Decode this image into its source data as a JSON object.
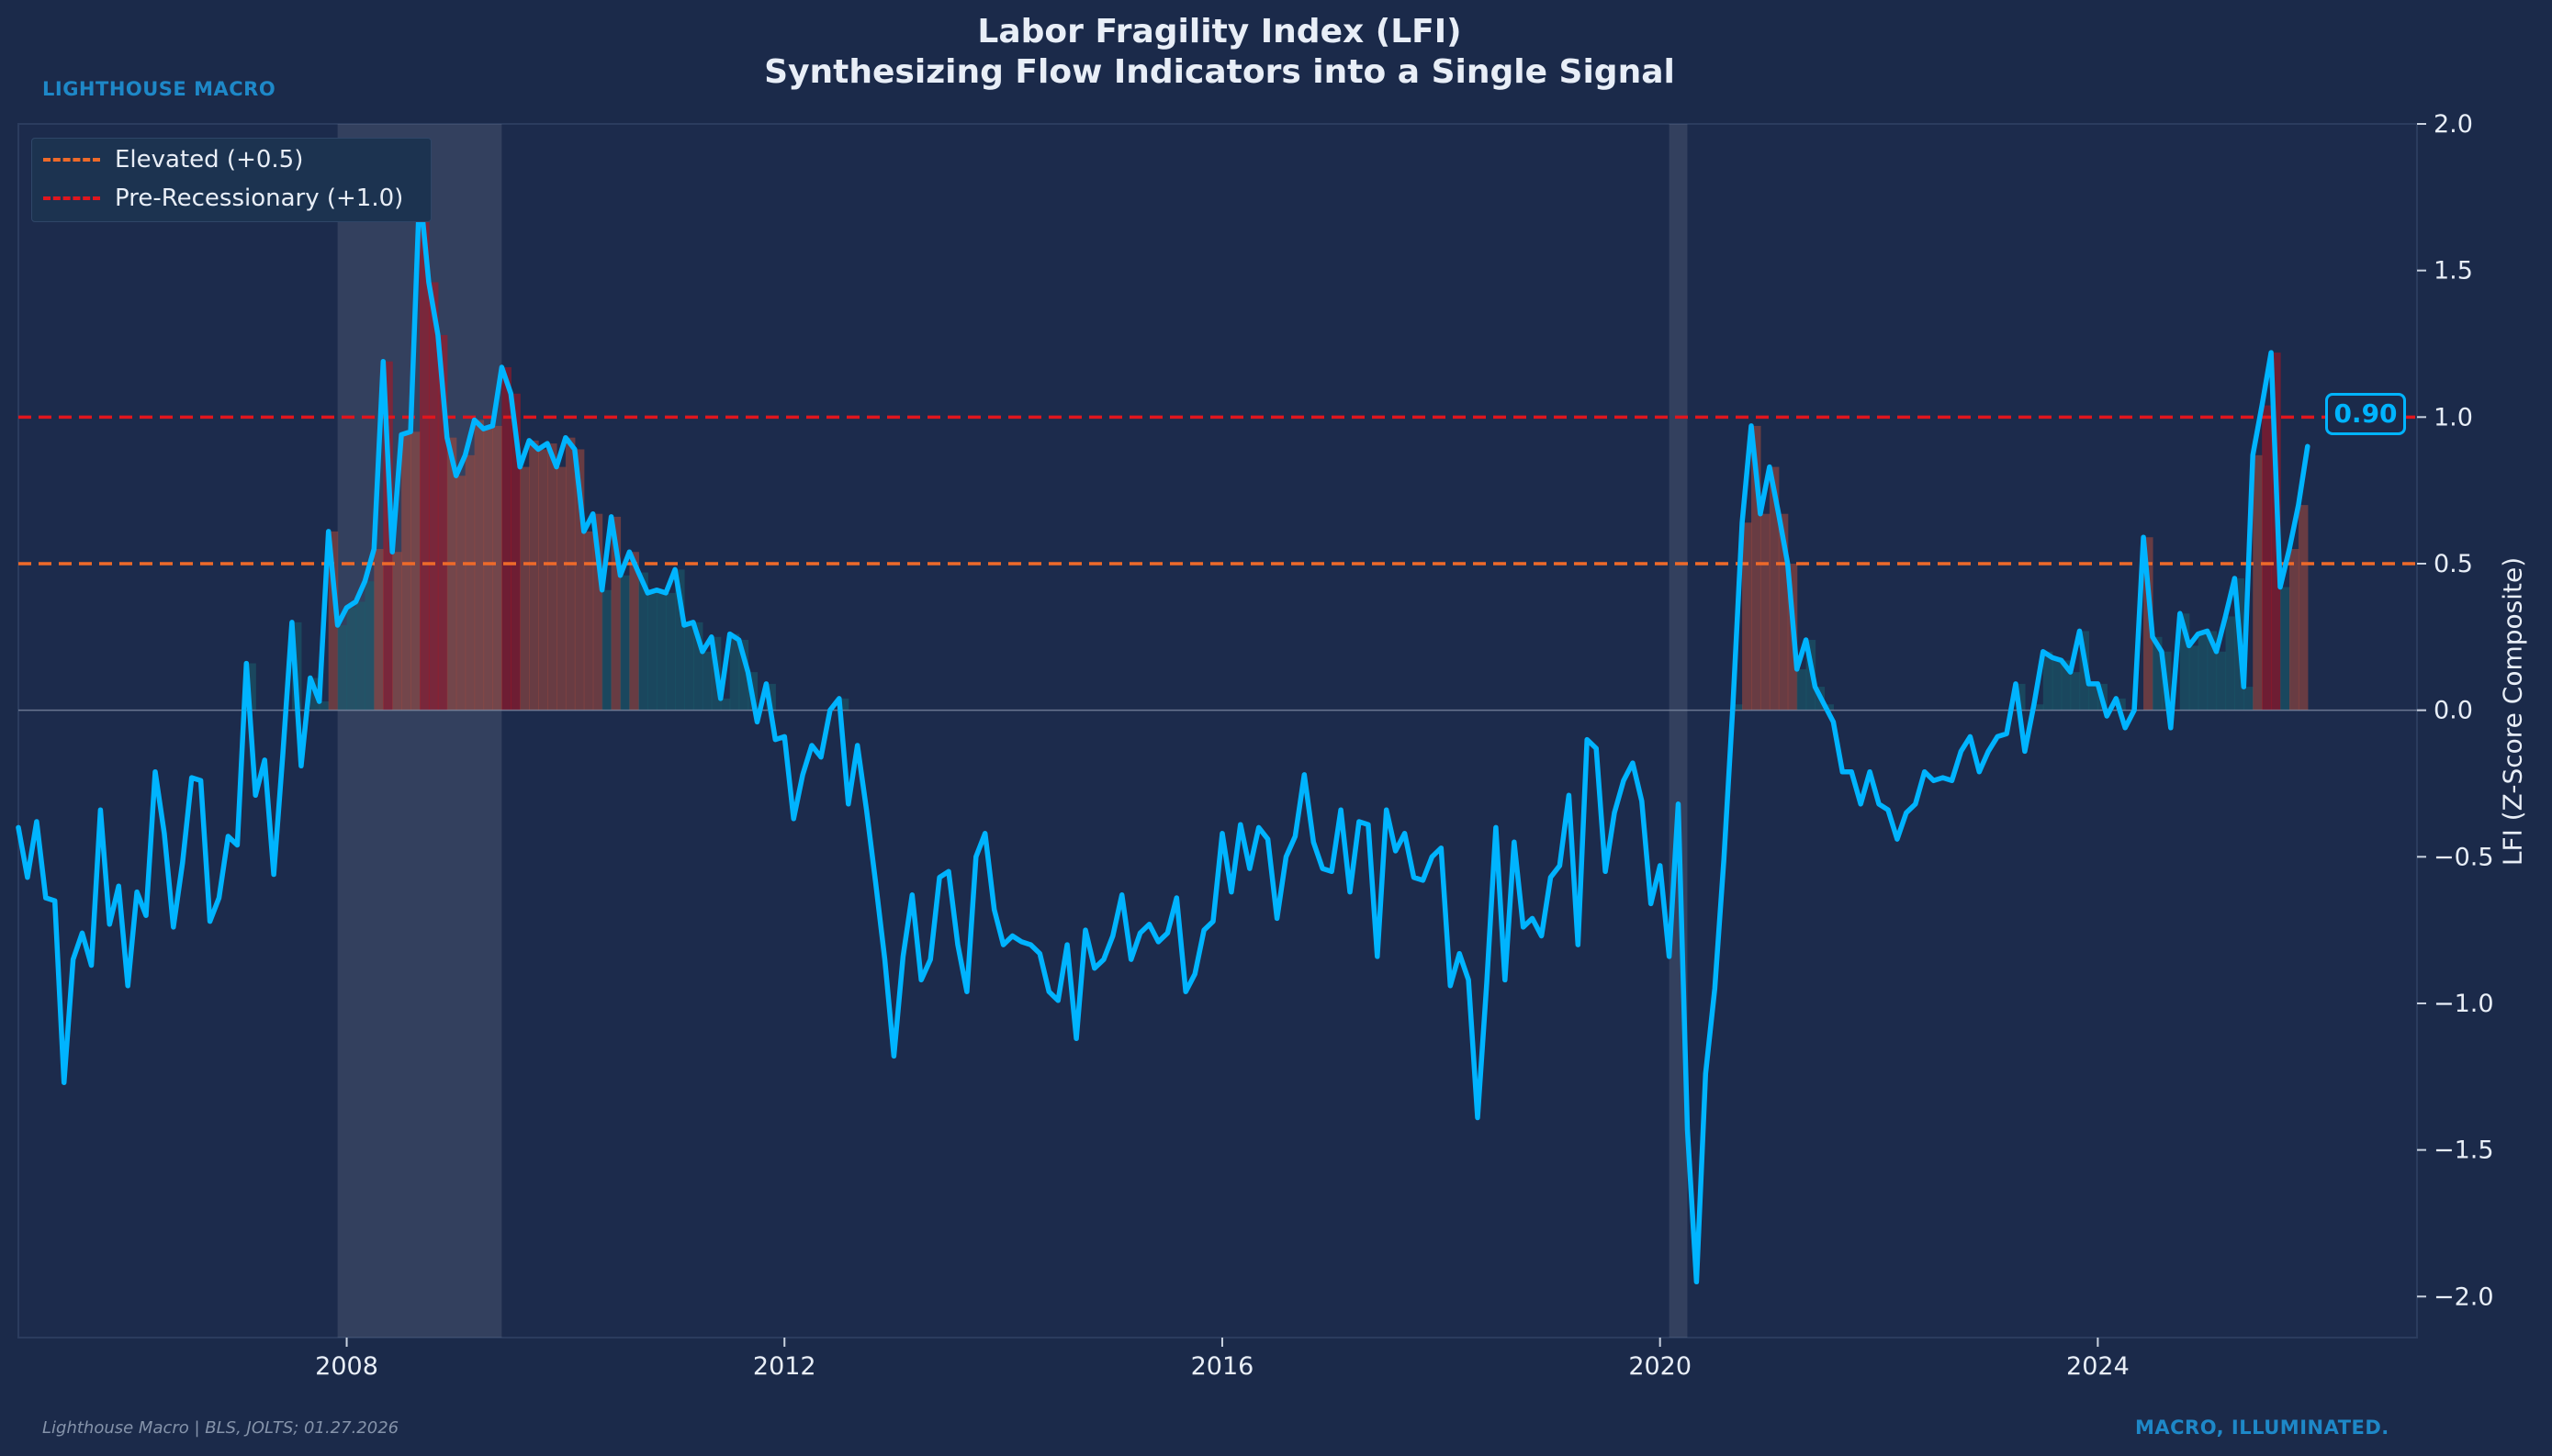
{
  "brand": "LIGHTHOUSE MACRO",
  "tagline": "MACRO, ILLUMINATED.",
  "source": "Lighthouse Macro | BLS, JOLTS; 01.27.2026",
  "chart_data": {
    "type": "line",
    "title": "Labor Fragility Index (LFI)",
    "subtitle": "Synthesizing Flow Indicators into a Single Signal",
    "ylabel": "LFI (Z-Score Composite)",
    "xlabel": "",
    "xlim": [
      "2005-01",
      "2026-12"
    ],
    "ylim": [
      -2.14,
      2.0
    ],
    "yaxis_position": "right",
    "yticks": [
      2.0,
      1.5,
      1.0,
      0.5,
      0.0,
      -0.5,
      -1.0,
      -1.5,
      -2.0
    ],
    "ytick_labels": [
      "2.0",
      "1.5",
      "1.0",
      "0.5",
      "0.0",
      "−0.5",
      "−1.0",
      "−1.5",
      "−2.0"
    ],
    "xticks": [
      "2008",
      "2012",
      "2016",
      "2020",
      "2024"
    ],
    "grid": false,
    "legend_placement": "top-left",
    "thresholds": [
      {
        "name": "Elevated (+0.5)",
        "value": 0.5,
        "color": "#ee6a2a"
      },
      {
        "name": "Pre-Recessionary (+1.0)",
        "value": 1.0,
        "color": "#e0161e"
      }
    ],
    "recessions": [
      {
        "start": "2007-12",
        "end": "2009-06"
      },
      {
        "start": "2020-02",
        "end": "2020-04"
      }
    ],
    "last_value_label": "0.90",
    "series": [
      {
        "color": "#00b4ff",
        "x": [
          "2005-01",
          "2005-02",
          "2005-03",
          "2005-04",
          "2005-05",
          "2005-06",
          "2005-07",
          "2005-08",
          "2005-09",
          "2005-10",
          "2005-11",
          "2005-12",
          "2006-01",
          "2006-02",
          "2006-03",
          "2006-04",
          "2006-05",
          "2006-06",
          "2006-07",
          "2006-08",
          "2006-09",
          "2006-10",
          "2006-11",
          "2006-12",
          "2007-01",
          "2007-02",
          "2007-03",
          "2007-04",
          "2007-05",
          "2007-06",
          "2007-07",
          "2007-08",
          "2007-09",
          "2007-10",
          "2007-11",
          "2007-12",
          "2008-01",
          "2008-02",
          "2008-03",
          "2008-04",
          "2008-05",
          "2008-06",
          "2008-07",
          "2008-08",
          "2008-09",
          "2008-10",
          "2008-11",
          "2008-12",
          "2009-01",
          "2009-02",
          "2009-03",
          "2009-04",
          "2009-05",
          "2009-06",
          "2009-07",
          "2009-08",
          "2009-09",
          "2009-10",
          "2009-11",
          "2009-12",
          "2010-01",
          "2010-02",
          "2010-03",
          "2010-04",
          "2010-05",
          "2010-06",
          "2010-07",
          "2010-08",
          "2010-09",
          "2010-10",
          "2010-11",
          "2010-12",
          "2011-01",
          "2011-02",
          "2011-03",
          "2011-04",
          "2011-05",
          "2011-06",
          "2011-07",
          "2011-08",
          "2011-09",
          "2011-10",
          "2011-11",
          "2011-12",
          "2012-01",
          "2012-02",
          "2012-03",
          "2012-04",
          "2012-05",
          "2012-06",
          "2012-07",
          "2012-08",
          "2012-09",
          "2012-10",
          "2012-11",
          "2012-12",
          "2013-01",
          "2013-02",
          "2013-03",
          "2013-04",
          "2013-05",
          "2013-06",
          "2013-07",
          "2013-08",
          "2013-09",
          "2013-10",
          "2013-11",
          "2013-12",
          "2014-01",
          "2014-02",
          "2014-03",
          "2014-04",
          "2014-05",
          "2014-06",
          "2014-07",
          "2014-08",
          "2014-09",
          "2014-10",
          "2014-11",
          "2014-12",
          "2015-01",
          "2015-02",
          "2015-03",
          "2015-04",
          "2015-05",
          "2015-06",
          "2015-07",
          "2015-08",
          "2015-09",
          "2015-10",
          "2015-11",
          "2015-12",
          "2016-01",
          "2016-02",
          "2016-03",
          "2016-04",
          "2016-05",
          "2016-06",
          "2016-07",
          "2016-08",
          "2016-09",
          "2016-10",
          "2016-11",
          "2016-12",
          "2017-01",
          "2017-02",
          "2017-03",
          "2017-04",
          "2017-05",
          "2017-06",
          "2017-07",
          "2017-08",
          "2017-09",
          "2017-10",
          "2017-11",
          "2017-12",
          "2018-01",
          "2018-02",
          "2018-03",
          "2018-04",
          "2018-05",
          "2018-06",
          "2018-07",
          "2018-08",
          "2018-09",
          "2018-10",
          "2018-11",
          "2018-12",
          "2019-01",
          "2019-02",
          "2019-03",
          "2019-04",
          "2019-05",
          "2019-06",
          "2019-07",
          "2019-08",
          "2019-09",
          "2019-10",
          "2019-11",
          "2019-12",
          "2020-01",
          "2020-02",
          "2020-03",
          "2020-04",
          "2020-05",
          "2020-06",
          "2020-07",
          "2020-08",
          "2020-09",
          "2020-10",
          "2020-11",
          "2020-12",
          "2021-01",
          "2021-02",
          "2021-03",
          "2021-04",
          "2021-05",
          "2021-06",
          "2021-07",
          "2021-08",
          "2021-09",
          "2021-10",
          "2021-11",
          "2021-12",
          "2022-01",
          "2022-02",
          "2022-03",
          "2022-04",
          "2022-05",
          "2022-06",
          "2022-07",
          "2022-08",
          "2022-09",
          "2022-10",
          "2022-11",
          "2022-12",
          "2023-01",
          "2023-02",
          "2023-03",
          "2023-04",
          "2023-05",
          "2023-06",
          "2023-07",
          "2023-08",
          "2023-09",
          "2023-10",
          "2023-11",
          "2023-12",
          "2024-01",
          "2024-02",
          "2024-03",
          "2024-04",
          "2024-05",
          "2024-06",
          "2024-07",
          "2024-08",
          "2024-09",
          "2024-10",
          "2024-11",
          "2024-12",
          "2025-01",
          "2025-02",
          "2025-03",
          "2025-04",
          "2025-05",
          "2025-06",
          "2025-07",
          "2025-08",
          "2025-09",
          "2025-10",
          "2025-11",
          "2025-12"
        ],
        "values": [
          -0.4,
          -0.57,
          -0.38,
          -0.64,
          -0.65,
          -1.27,
          -0.85,
          -0.76,
          -0.87,
          -0.34,
          -0.73,
          -0.6,
          -0.94,
          -0.62,
          -0.7,
          -0.21,
          -0.42,
          -0.74,
          -0.52,
          -0.23,
          -0.24,
          -0.72,
          -0.64,
          -0.43,
          -0.46,
          0.16,
          -0.29,
          -0.17,
          -0.56,
          -0.15,
          0.3,
          -0.19,
          0.11,
          0.03,
          0.61,
          0.29,
          0.35,
          0.37,
          0.44,
          0.55,
          1.19,
          0.54,
          0.94,
          0.95,
          1.78,
          1.46,
          1.28,
          0.93,
          0.8,
          0.87,
          0.99,
          0.96,
          0.97,
          1.17,
          1.08,
          0.83,
          0.92,
          0.89,
          0.91,
          0.83,
          0.93,
          0.89,
          0.61,
          0.67,
          0.41,
          0.66,
          0.46,
          0.54,
          0.47,
          0.4,
          0.41,
          0.4,
          0.48,
          0.29,
          0.3,
          0.2,
          0.25,
          0.04,
          0.26,
          0.24,
          0.13,
          -0.04,
          0.09,
          -0.1,
          -0.09,
          -0.37,
          -0.22,
          -0.12,
          -0.16,
          0.0,
          0.04,
          -0.32,
          -0.12,
          -0.34,
          -0.59,
          -0.85,
          -1.18,
          -0.84,
          -0.63,
          -0.92,
          -0.85,
          -0.57,
          -0.55,
          -0.8,
          -0.96,
          -0.5,
          -0.42,
          -0.68,
          -0.8,
          -0.77,
          -0.79,
          -0.8,
          -0.83,
          -0.96,
          -0.99,
          -0.8,
          -1.12,
          -0.75,
          -0.88,
          -0.85,
          -0.77,
          -0.63,
          -0.85,
          -0.76,
          -0.73,
          -0.79,
          -0.76,
          -0.64,
          -0.96,
          -0.9,
          -0.75,
          -0.72,
          -0.42,
          -0.62,
          -0.39,
          -0.54,
          -0.4,
          -0.44,
          -0.71,
          -0.5,
          -0.43,
          -0.22,
          -0.45,
          -0.54,
          -0.55,
          -0.34,
          -0.62,
          -0.38,
          -0.39,
          -0.84,
          -0.34,
          -0.48,
          -0.42,
          -0.57,
          -0.58,
          -0.5,
          -0.47,
          -0.94,
          -0.83,
          -0.92,
          -1.39,
          -0.93,
          -0.4,
          -0.92,
          -0.45,
          -0.74,
          -0.71,
          -0.77,
          -0.57,
          -0.53,
          -0.29,
          -0.8,
          -0.1,
          -0.13,
          -0.55,
          -0.35,
          -0.24,
          -0.18,
          -0.31,
          -0.66,
          -0.53,
          -0.84,
          -0.32,
          -1.43,
          -1.95,
          -1.24,
          -0.95,
          -0.51,
          0.02,
          0.64,
          0.97,
          0.67,
          0.83,
          0.67,
          0.5,
          0.14,
          0.24,
          0.08,
          0.02,
          -0.04,
          -0.21,
          -0.21,
          -0.32,
          -0.21,
          -0.32,
          -0.34,
          -0.44,
          -0.35,
          -0.32,
          -0.21,
          -0.24,
          -0.23,
          -0.24,
          -0.14,
          -0.09,
          -0.21,
          -0.14,
          -0.09,
          -0.08,
          0.09,
          -0.14,
          0.02,
          0.2,
          0.18,
          0.17,
          0.13,
          0.27,
          0.09,
          0.09,
          -0.02,
          0.04,
          -0.06,
          0.0,
          0.59,
          0.25,
          0.2,
          -0.06,
          0.33,
          0.22,
          0.26,
          0.27,
          0.2,
          0.32,
          0.45,
          0.08,
          0.87,
          1.04,
          1.22,
          0.42,
          0.55,
          0.7,
          0.9
        ]
      }
    ]
  }
}
